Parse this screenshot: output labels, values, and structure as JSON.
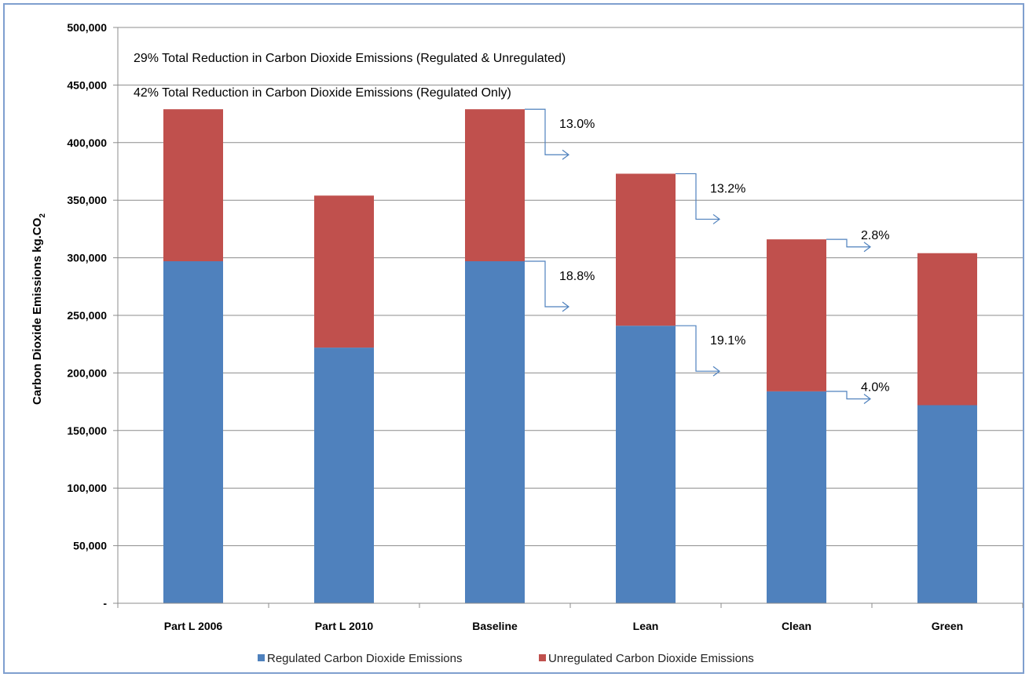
{
  "chart_data": {
    "type": "bar",
    "stacked": true,
    "categories": [
      "Part L 2006",
      "Part L 2010",
      "Baseline",
      "Lean",
      "Clean",
      "Green"
    ],
    "series": [
      {
        "name": "Regulated Carbon Dioxide Emissions",
        "color": "#4f81bd",
        "values": [
          297000,
          222000,
          297000,
          241000,
          184000,
          172000
        ]
      },
      {
        "name": "Unregulated Carbon Dioxide Emissions",
        "color": "#c0504d",
        "values": [
          132000,
          132000,
          132000,
          132000,
          132000,
          132000
        ]
      }
    ],
    "ylabel_main": "Carbon Dioxide Emissions kg.CO",
    "ylabel_sub": "2",
    "ylim": [
      0,
      500000
    ],
    "yticks": [
      {
        "value": 0,
        "label": "-"
      },
      {
        "value": 50000,
        "label": "50,000"
      },
      {
        "value": 100000,
        "label": "100,000"
      },
      {
        "value": 150000,
        "label": "150,000"
      },
      {
        "value": 200000,
        "label": "200,000"
      },
      {
        "value": 250000,
        "label": "250,000"
      },
      {
        "value": 300000,
        "label": "300,000"
      },
      {
        "value": 350000,
        "label": "350,000"
      },
      {
        "value": 400000,
        "label": "400,000"
      },
      {
        "value": 450000,
        "label": "450,000"
      },
      {
        "value": 500000,
        "label": "500,000"
      }
    ],
    "grid": true,
    "legend_position": "bottom",
    "headline_annotations": [
      "29% Total Reduction in Carbon Dioxide Emissions (Regulated & Unregulated)",
      "42% Total Reduction in Carbon Dioxide Emissions (Regulated Only)"
    ],
    "reduction_annotations": [
      {
        "from": "Baseline",
        "to": "Lean",
        "level": "total",
        "label": "13.0%"
      },
      {
        "from": "Lean",
        "to": "Clean",
        "level": "total",
        "label": "13.2%"
      },
      {
        "from": "Clean",
        "to": "Green",
        "level": "total",
        "label": "2.8%"
      },
      {
        "from": "Baseline",
        "to": "Lean",
        "level": "regulated",
        "label": "18.8%"
      },
      {
        "from": "Lean",
        "to": "Clean",
        "level": "regulated",
        "label": "19.1%"
      },
      {
        "from": "Clean",
        "to": "Green",
        "level": "regulated",
        "label": "4.0%"
      }
    ],
    "gridline_color": "#8c8c8c",
    "arrow_color": "#4f81bd"
  }
}
